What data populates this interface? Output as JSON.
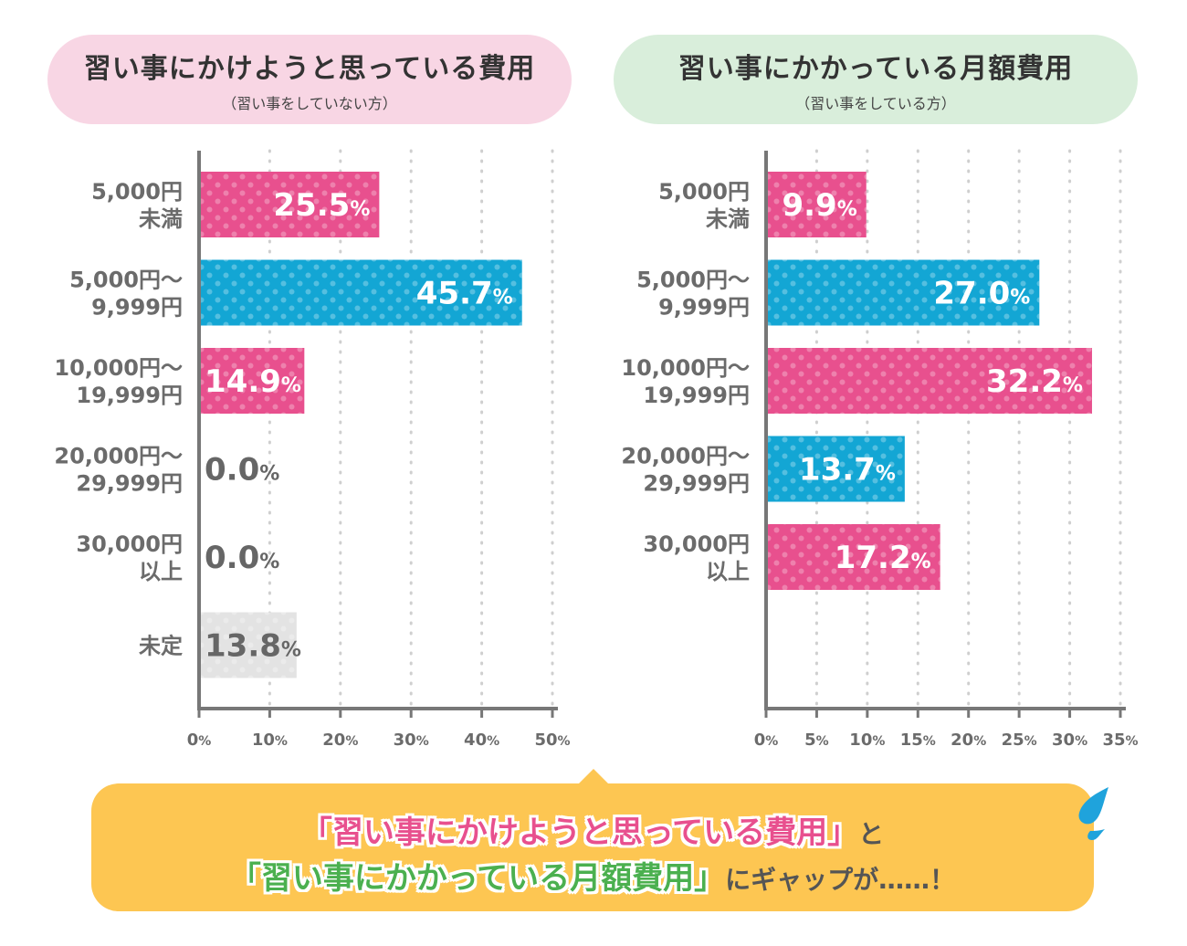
{
  "titles": {
    "left_main": "習い事にかけようと思っている費用",
    "left_sub": "（習い事をしていない方）",
    "right_main": "習い事にかかっている月額費用",
    "right_sub": "（習い事をしている方）"
  },
  "colors": {
    "pink": "#e8508e",
    "blue": "#13a6d4",
    "gray": "#e3e3e3",
    "axis": "#777777",
    "label": "#6b6b6b"
  },
  "chart_data": [
    {
      "type": "bar",
      "orientation": "horizontal",
      "title": "習い事にかけようと思っている費用",
      "subtitle": "（習い事をしていない方）",
      "categories": [
        [
          "5,000円",
          "未満"
        ],
        [
          "5,000円～",
          "9,999円"
        ],
        [
          "10,000円～",
          "19,999円"
        ],
        [
          "20,000円～",
          "29,999円"
        ],
        [
          "30,000円",
          "以上"
        ],
        [
          "未定"
        ]
      ],
      "values": [
        25.5,
        45.7,
        14.9,
        0.0,
        0.0,
        13.8
      ],
      "value_labels": [
        "25.5",
        "45.7",
        "14.9",
        "0.0",
        "0.0",
        "13.8"
      ],
      "bar_colors": [
        "pink",
        "blue",
        "pink",
        "pink",
        "pink",
        "gray"
      ],
      "xlim": [
        0,
        50
      ],
      "xticks": [
        0,
        10,
        20,
        30,
        40,
        50
      ],
      "tick_suffix": "%",
      "grid": true
    },
    {
      "type": "bar",
      "orientation": "horizontal",
      "title": "習い事にかかっている月額費用",
      "subtitle": "（習い事をしている方）",
      "categories": [
        [
          "5,000円",
          "未満"
        ],
        [
          "5,000円～",
          "9,999円"
        ],
        [
          "10,000円～",
          "19,999円"
        ],
        [
          "20,000円～",
          "29,999円"
        ],
        [
          "30,000円",
          "以上"
        ]
      ],
      "values": [
        9.9,
        27.0,
        32.2,
        13.7,
        17.2
      ],
      "value_labels": [
        "9.9",
        "27.0",
        "32.2",
        "13.7",
        "17.2"
      ],
      "bar_colors": [
        "pink",
        "blue",
        "pink",
        "blue",
        "pink"
      ],
      "xlim": [
        0,
        35
      ],
      "xticks": [
        0,
        5,
        10,
        15,
        20,
        25,
        30,
        35
      ],
      "tick_suffix": "%",
      "grid": true
    }
  ],
  "callout": {
    "q1_open": "「",
    "q1_text": "習い事にかけようと思っている費用",
    "q1_close": "」",
    "conj": "と",
    "q2_open": "「",
    "q2_text": "習い事にかかっている月額費用",
    "q2_close": "」",
    "tail": "にギャップが……！"
  }
}
